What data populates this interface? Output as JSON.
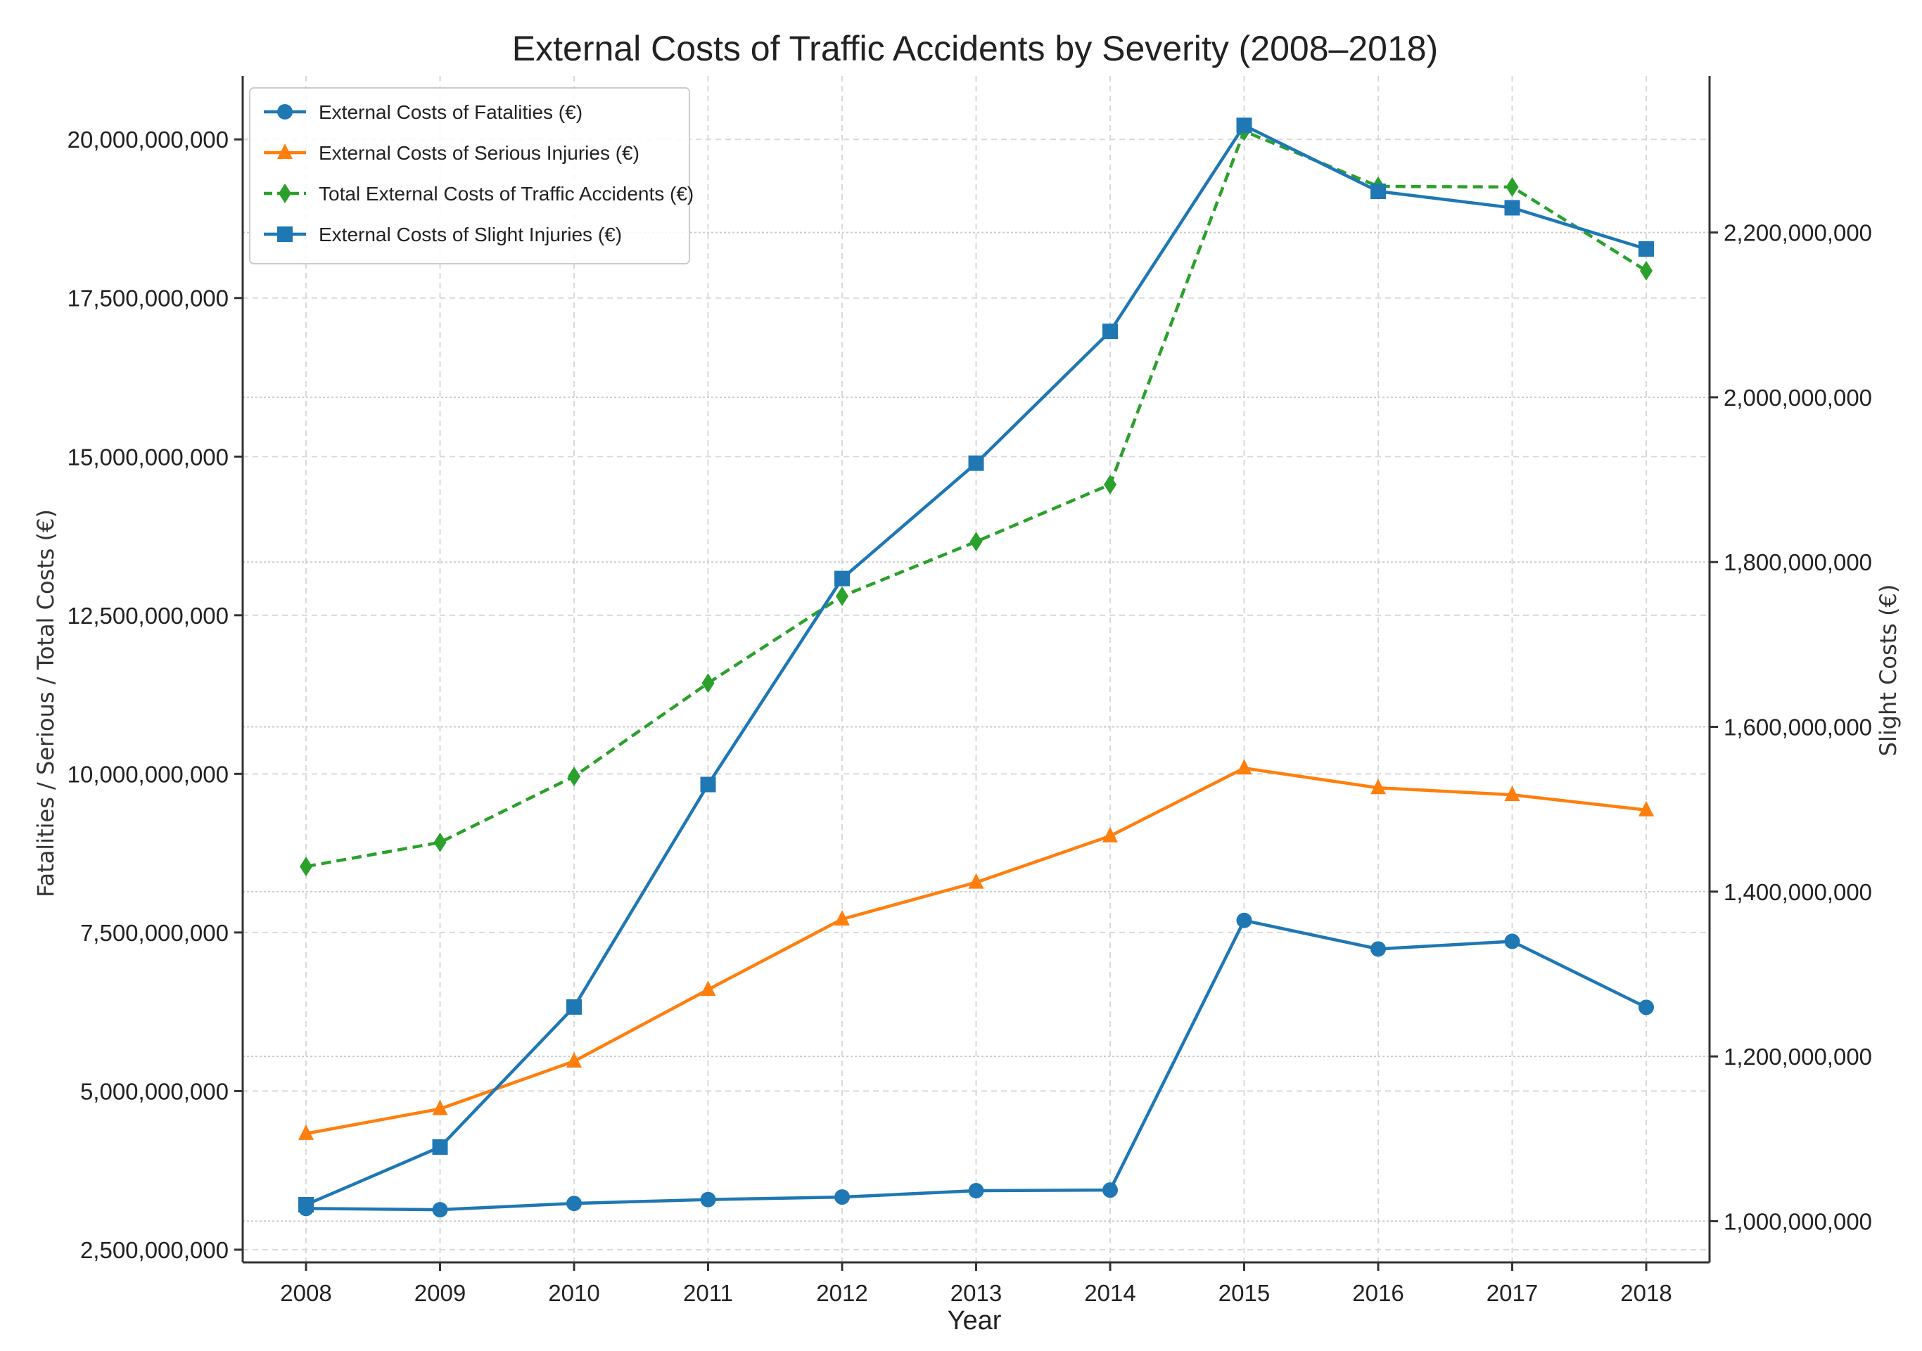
{
  "chart_data": {
    "type": "line",
    "title": "External Costs of Traffic Accidents by Severity (2008–2018)",
    "xlabel": "Year",
    "ylabel": "Fatalities / Serious / Total Costs (€)",
    "ylabel_right": "Slight Costs (€)",
    "categories": [
      "2008",
      "2009",
      "2010",
      "2011",
      "2012",
      "2013",
      "2014",
      "2015",
      "2016",
      "2017",
      "2018"
    ],
    "ylim": [
      2300000000,
      21000000000
    ],
    "ylim_right": [
      950000000,
      2390000000
    ],
    "yticks": [
      2500000000,
      5000000000,
      7500000000,
      10000000000,
      12500000000,
      15000000000,
      17500000000,
      20000000000
    ],
    "ytick_labels": [
      "2,500,000,000",
      "5,000,000,000",
      "7,500,000,000",
      "10,000,000,000",
      "12,500,000,000",
      "15,000,000,000",
      "17,500,000,000",
      "20,000,000,000"
    ],
    "yticks_right": [
      1000000000,
      1200000000,
      1400000000,
      1600000000,
      1800000000,
      2000000000,
      2200000000
    ],
    "ytick_labels_right": [
      "1,000,000,000",
      "1,200,000,000",
      "1,400,000,000",
      "1,600,000,000",
      "1,800,000,000",
      "2,000,000,000",
      "2,200,000,000"
    ],
    "legend_position": "top-left",
    "series": [
      {
        "name": "External Costs of Fatalities (€)",
        "axis": "left",
        "color": "#1f77b4",
        "marker": "circle",
        "dashed": false,
        "values": [
          3150000000,
          3130000000,
          3230000000,
          3290000000,
          3330000000,
          3430000000,
          3440000000,
          7690000000,
          7240000000,
          7360000000,
          6320000000
        ]
      },
      {
        "name": "External Costs of Serious Injuries (€)",
        "axis": "left",
        "color": "#ff7f0e",
        "marker": "triangle",
        "dashed": false,
        "values": [
          4330000000,
          4720000000,
          5470000000,
          6600000000,
          7710000000,
          8290000000,
          9020000000,
          10090000000,
          9780000000,
          9670000000,
          9430000000
        ]
      },
      {
        "name": "Total External Costs of Traffic Accidents (€)",
        "axis": "left",
        "color": "#2ca02c",
        "marker": "diamond",
        "dashed": true,
        "values": [
          8540000000,
          8920000000,
          9960000000,
          11430000000,
          12800000000,
          13660000000,
          14560000000,
          20130000000,
          19260000000,
          19250000000,
          17930000000
        ]
      },
      {
        "name": "External Costs of Slight Injuries (€)",
        "axis": "right",
        "color": "#1f77b4",
        "marker": "square",
        "dashed": false,
        "values": [
          1020000000,
          1090000000,
          1260000000,
          1530000000,
          1780000000,
          1920000000,
          2080000000,
          2330000000,
          2250000000,
          2230000000,
          2180000000
        ]
      }
    ]
  }
}
